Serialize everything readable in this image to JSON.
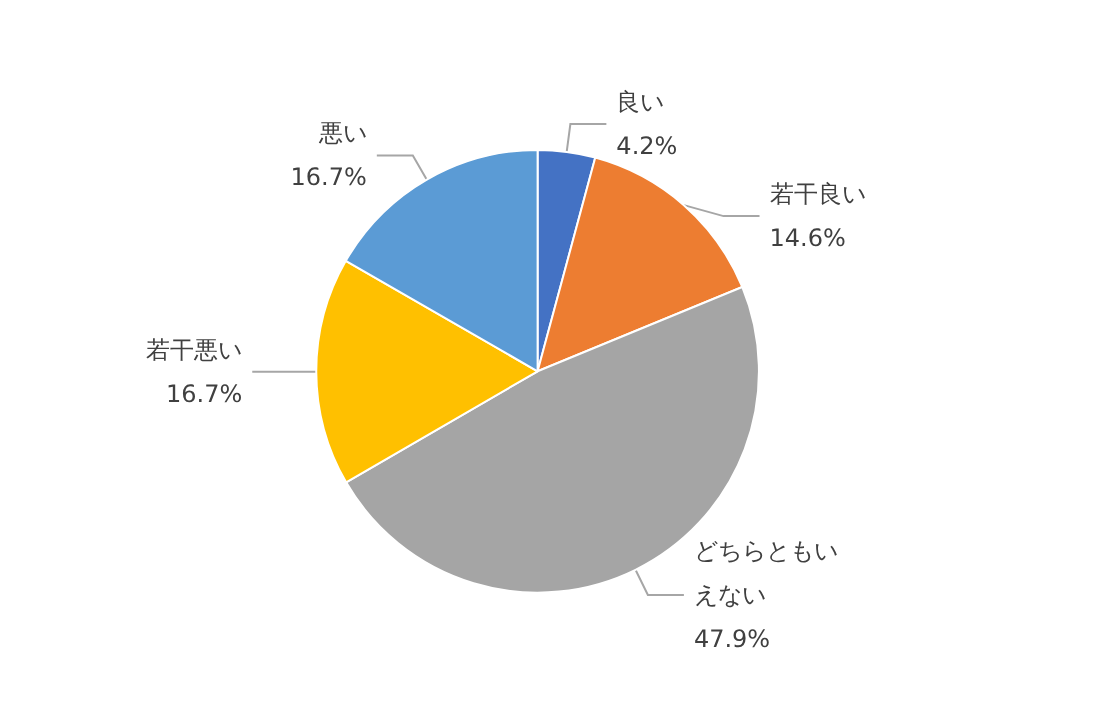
{
  "chart_data": {
    "type": "pie",
    "categories": [
      "良い",
      "若干良い",
      "どちらともいえない",
      "若干悪い",
      "悪い"
    ],
    "values": [
      4.2,
      14.6,
      47.9,
      16.7,
      16.7
    ],
    "colors": [
      "#4472c4",
      "#ed7d31",
      "#a5a5a5",
      "#ffc000",
      "#5b9bd5"
    ],
    "value_labels": [
      "4.2%",
      "14.6%",
      "47.9%",
      "16.7%",
      "16.7%"
    ]
  }
}
